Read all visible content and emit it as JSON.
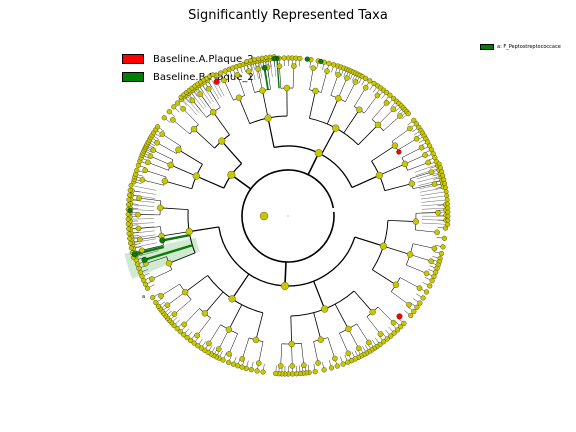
{
  "figure": {
    "title": "Significantly Represented Taxa"
  },
  "legend": {
    "items": [
      {
        "label": "Baseline.A.Plaque_2",
        "color": "#ff0000"
      },
      {
        "label": "Baseline.B.Plaque_2",
        "color": "#008000"
      }
    ]
  },
  "side_legend": {
    "label": "a: F_Peptostreptococcace",
    "color": "#008000"
  },
  "clade_label": "a",
  "colors": {
    "node_default": "#c8c800",
    "node_A": "#ff0000",
    "node_B": "#0a7a0a",
    "shade_B": "#a8d8a8"
  }
}
